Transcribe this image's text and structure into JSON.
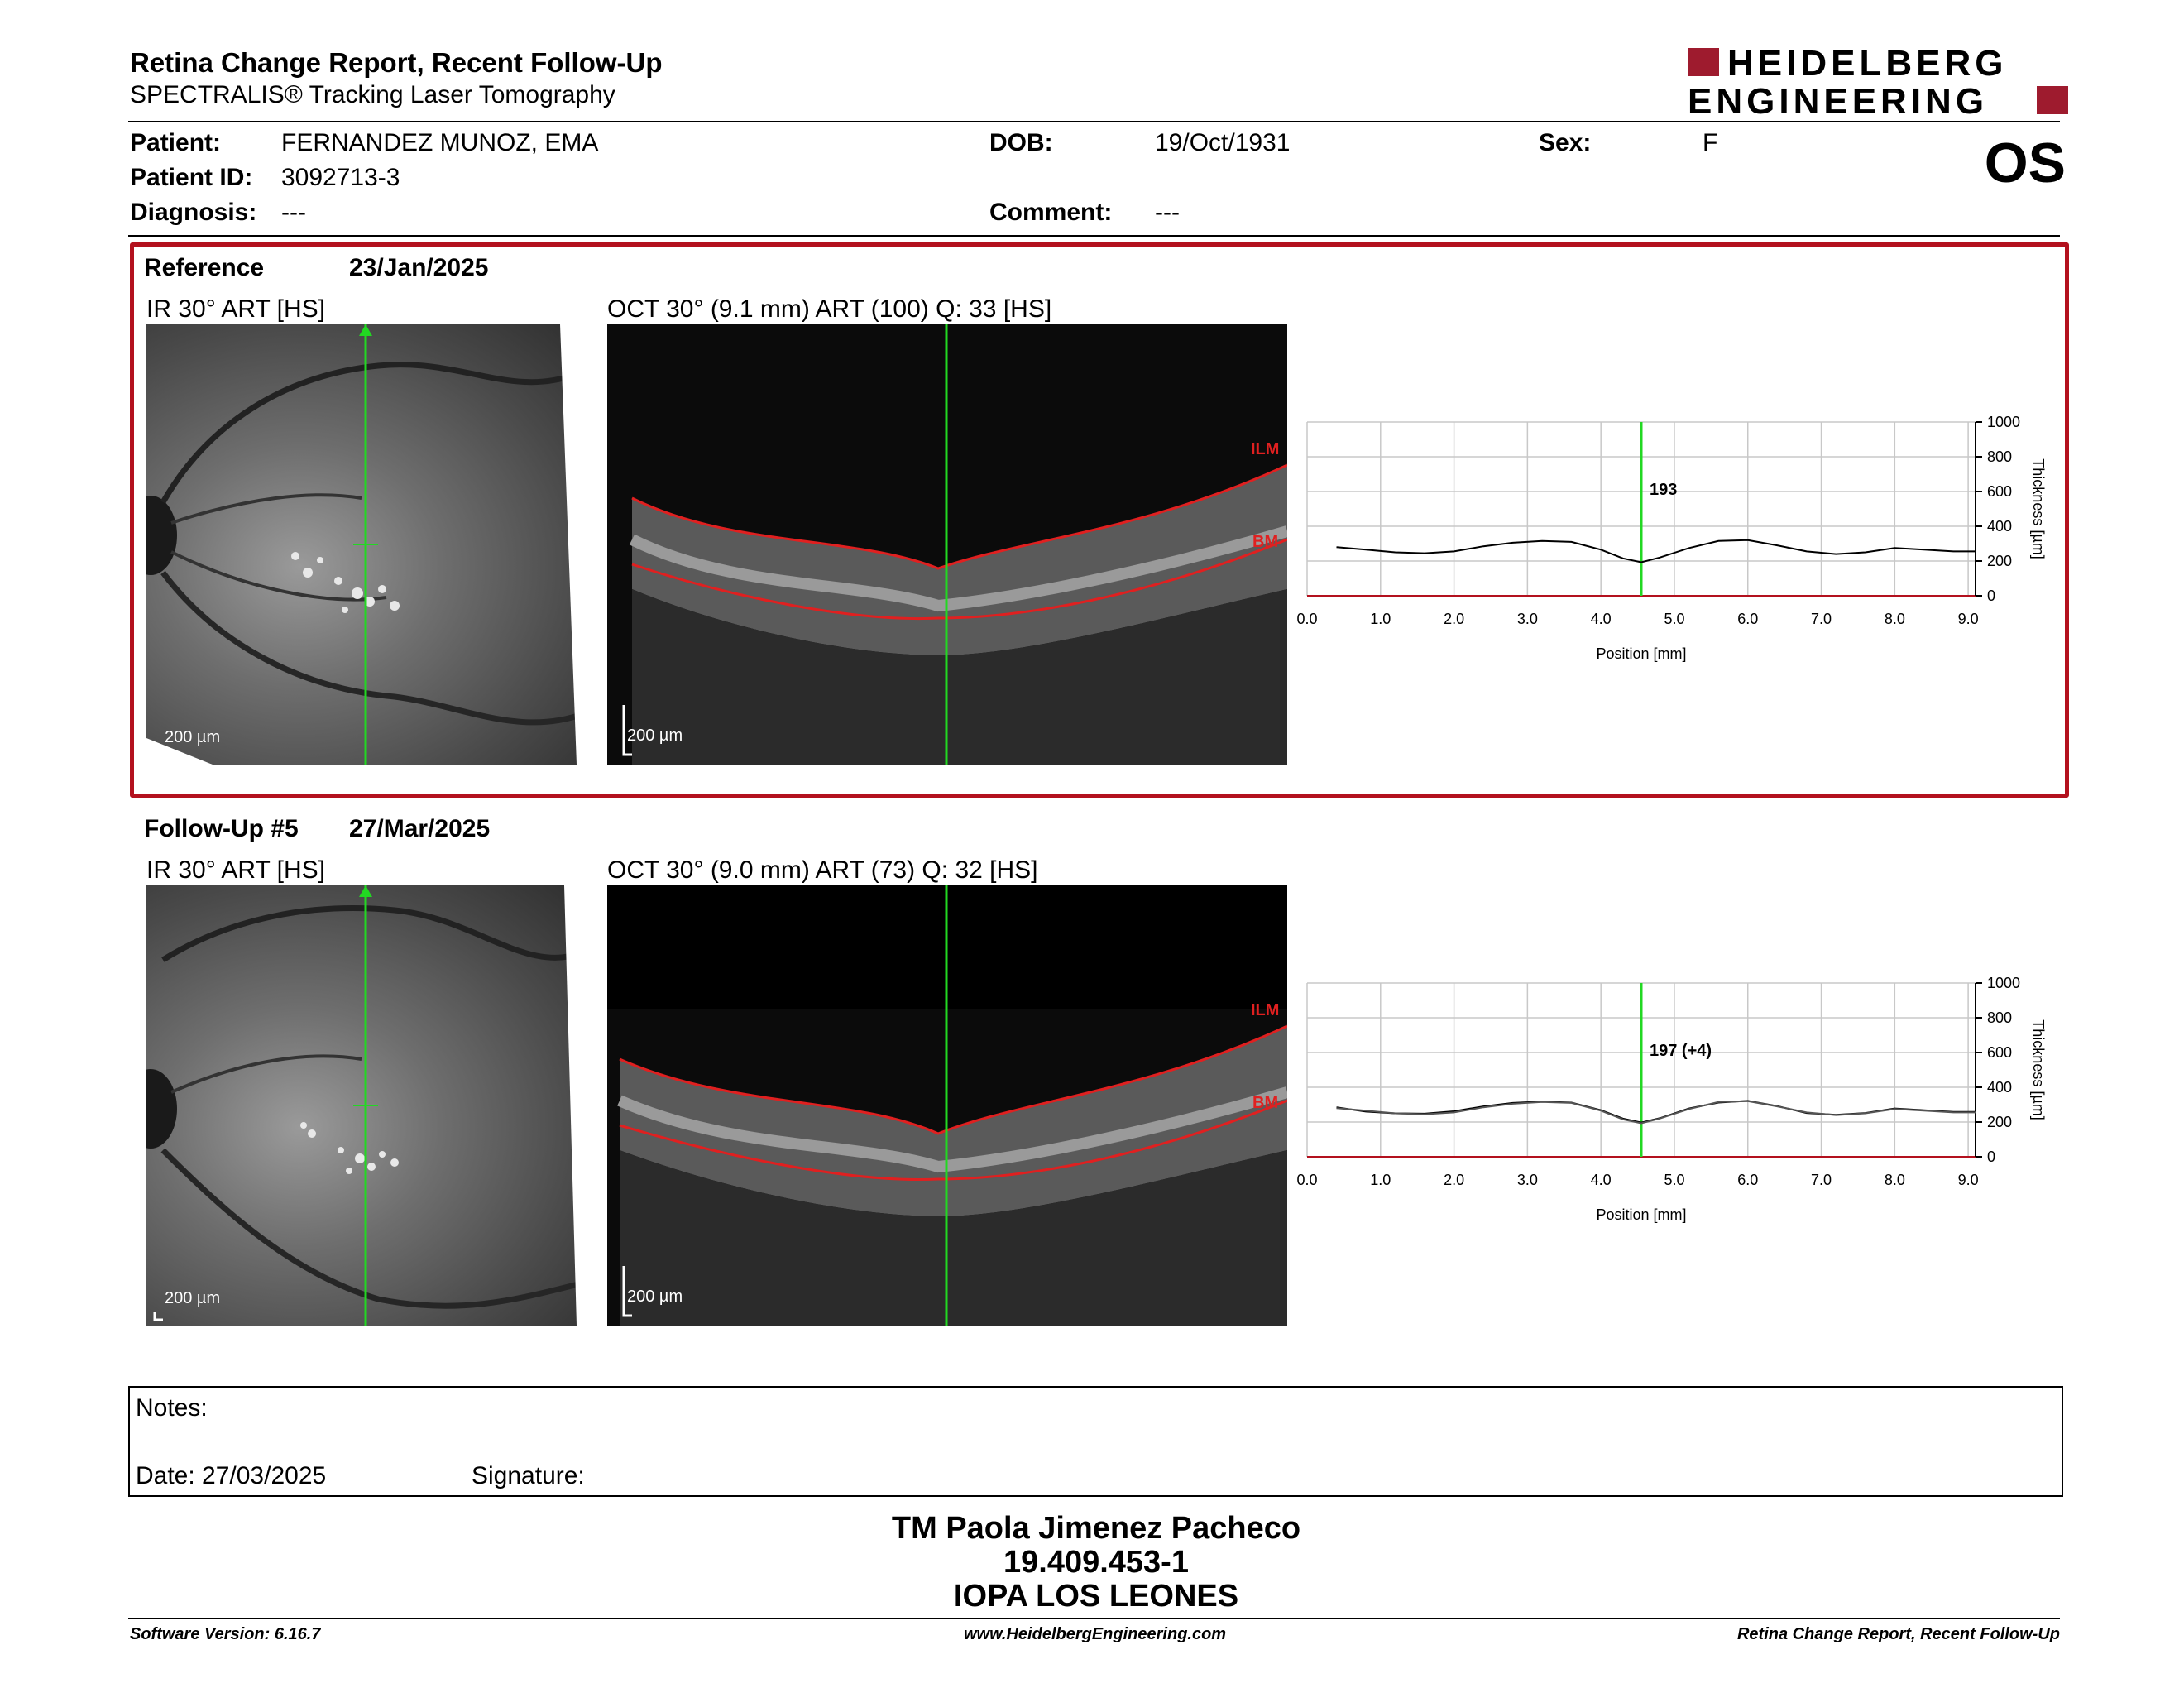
{
  "report": {
    "title": "Retina Change Report, Recent Follow-Up",
    "subtitle": "SPECTRALIS® Tracking Laser Tomography",
    "eye": "OS",
    "logo_line1": "HEIDELBERG",
    "logo_line2": "ENGINEERING"
  },
  "patient": {
    "name_label": "Patient:",
    "name": "FERNANDEZ MUNOZ, EMA",
    "id_label": "Patient ID:",
    "id": "3092713-3",
    "diagnosis_label": "Diagnosis:",
    "diagnosis": "---",
    "dob_label": "DOB:",
    "dob": "19/Oct/1931",
    "comment_label": "Comment:",
    "comment": "---",
    "sex_label": "Sex:",
    "sex": "F"
  },
  "reference": {
    "label": "Reference",
    "date": "23/Jan/2025",
    "ir_title": "IR 30° ART [HS]",
    "oct_title": "OCT 30° (9.1 mm) ART (100) Q: 33 [HS]",
    "ir_scale": "200 µm",
    "oct_scale": "200 µm",
    "ilm_label": "ILM",
    "bm_label": "BM",
    "thickness_label": "193"
  },
  "followup": {
    "label": "Follow-Up #5",
    "date": "27/Mar/2025",
    "ir_title": "IR 30° ART [HS]",
    "oct_title": "OCT 30° (9.0 mm) ART (73) Q: 32 [HS]",
    "ir_scale": "200 µm",
    "oct_scale": "200 µm",
    "ilm_label": "ILM",
    "bm_label": "BM",
    "thickness_label": "197 (+4)"
  },
  "chart_data": [
    {
      "type": "line",
      "xlabel": "Position [mm]",
      "ylabel": "Thickness [µm]",
      "xlim": [
        0.0,
        9.1
      ],
      "ylim": [
        0,
        1000
      ],
      "x_ticks": [
        "0.0",
        "1.0",
        "2.0",
        "3.0",
        "4.0",
        "5.0",
        "6.0",
        "7.0",
        "8.0",
        "9.0"
      ],
      "y_ticks": [
        "0",
        "200",
        "400",
        "600",
        "800",
        "1000"
      ],
      "grid": true,
      "marker_position": 4.55,
      "marker_label": "193",
      "series": [
        {
          "x": [
            0.4,
            0.8,
            1.2,
            1.6,
            2.0,
            2.4,
            2.8,
            3.2,
            3.6,
            4.0,
            4.3,
            4.55,
            4.8,
            5.2,
            5.6,
            6.0,
            6.4,
            6.8,
            7.2,
            7.6,
            8.0,
            8.4,
            8.8,
            9.1
          ],
          "y": [
            280,
            265,
            250,
            245,
            255,
            285,
            305,
            315,
            310,
            265,
            215,
            193,
            220,
            275,
            315,
            320,
            290,
            255,
            240,
            250,
            275,
            265,
            255,
            255
          ]
        }
      ]
    },
    {
      "type": "line",
      "xlabel": "Position [mm]",
      "ylabel": "Thickness [µm]",
      "xlim": [
        0.0,
        9.1
      ],
      "ylim": [
        0,
        1000
      ],
      "x_ticks": [
        "0.0",
        "1.0",
        "2.0",
        "3.0",
        "4.0",
        "5.0",
        "6.0",
        "7.0",
        "8.0",
        "9.0"
      ],
      "y_ticks": [
        "0",
        "200",
        "400",
        "600",
        "800",
        "1000"
      ],
      "grid": true,
      "marker_position": 4.55,
      "marker_label": "197 (+4)",
      "series": [
        {
          "x": [
            0.4,
            0.8,
            1.2,
            1.6,
            2.0,
            2.4,
            2.8,
            3.2,
            3.6,
            4.0,
            4.3,
            4.55,
            4.8,
            5.2,
            5.6,
            6.0,
            6.4,
            6.8,
            7.2,
            7.6,
            8.0,
            8.4,
            8.8,
            9.1
          ],
          "y": [
            285,
            260,
            250,
            248,
            262,
            290,
            310,
            318,
            312,
            268,
            220,
            197,
            222,
            278,
            312,
            322,
            292,
            252,
            242,
            252,
            278,
            268,
            258,
            258
          ]
        },
        {
          "x": [
            0.4,
            0.8,
            1.2,
            1.6,
            2.0,
            2.4,
            2.8,
            3.2,
            3.6,
            4.0,
            4.3,
            4.55,
            4.8,
            5.2,
            5.6,
            6.0,
            6.4,
            6.8,
            7.2,
            7.6,
            8.0,
            8.4,
            8.8,
            9.1
          ],
          "y": [
            280,
            265,
            250,
            245,
            255,
            285,
            305,
            315,
            310,
            265,
            215,
            193,
            220,
            275,
            315,
            320,
            290,
            255,
            240,
            250,
            275,
            265,
            255,
            255
          ]
        }
      ]
    }
  ],
  "notes": {
    "label": "Notes:",
    "date_label": "Date: 27/03/2025",
    "signature_label": "Signature:"
  },
  "signature": {
    "name": "TM Paola Jimenez Pacheco",
    "id": "19.409.453-1",
    "org": "IOPA LOS LEONES"
  },
  "footer": {
    "software": "Software Version: 6.16.7",
    "website": "www.HeidelbergEngineering.com",
    "report": "Retina Change Report, Recent Follow-Up"
  }
}
